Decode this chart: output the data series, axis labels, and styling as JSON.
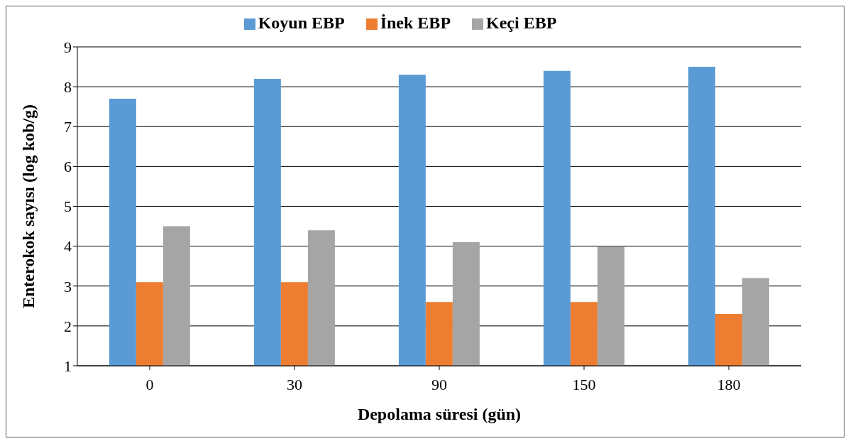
{
  "chart_data": {
    "type": "bar",
    "xlabel": "Depolama süresi (gün)",
    "ylabel": "Enterokok sayısı (log kob/g)",
    "categories": [
      "0",
      "30",
      "90",
      "150",
      "180"
    ],
    "series": [
      {
        "name": "Koyun EBP",
        "color": "#5b9bd5",
        "values": [
          7.7,
          8.2,
          8.3,
          8.4,
          8.5
        ]
      },
      {
        "name": "İnek EBP",
        "color": "#ed7d31",
        "values": [
          3.1,
          3.1,
          2.6,
          2.6,
          2.3
        ]
      },
      {
        "name": "Keçi EBP",
        "color": "#a5a5a5",
        "values": [
          4.5,
          4.4,
          4.1,
          4.0,
          3.2
        ]
      }
    ],
    "ylim": [
      1,
      9
    ],
    "yticks": [
      1,
      2,
      3,
      4,
      5,
      6,
      7,
      8,
      9
    ],
    "grid": "y",
    "legend": "top"
  }
}
